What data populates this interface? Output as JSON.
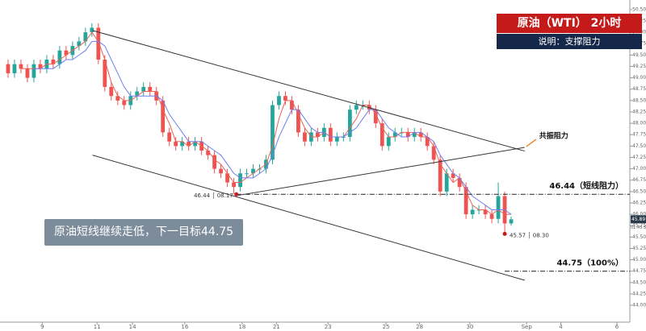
{
  "header": {
    "title": "原油（WTI） 2小时",
    "subtitle": "说明：支撑阻力"
  },
  "callout": "原油短线继续走低，下一目标44.75",
  "chart_data": {
    "type": "candlestick",
    "up_color": "#26a69a",
    "down_color": "#ef5350",
    "open": [
      49.3,
      49.1,
      49.3,
      49.2,
      49.0,
      49.3,
      49.2,
      49.4,
      49.3,
      49.6,
      49.5,
      49.7,
      49.8,
      50.0,
      50.1,
      49.4,
      48.8,
      48.6,
      48.5,
      48.4,
      48.6,
      48.7,
      48.8,
      48.7,
      48.5,
      47.8,
      47.6,
      47.5,
      47.6,
      47.5,
      47.6,
      47.4,
      47.3,
      47.0,
      46.9,
      46.7,
      46.6,
      46.9,
      46.9,
      47.0,
      47.0,
      47.2,
      48.4,
      48.6,
      48.5,
      48.3,
      47.8,
      47.6,
      47.8,
      47.7,
      47.9,
      47.6,
      47.7,
      47.7,
      48.3,
      48.4,
      48.4,
      48.3,
      48.0,
      47.5,
      47.7,
      47.8,
      47.8,
      47.7,
      47.8,
      47.7,
      47.5,
      47.2,
      46.5,
      46.9,
      46.8,
      46.6,
      46.0,
      46.1,
      46.1,
      46.0,
      45.9,
      46.4,
      45.8
    ],
    "high": [
      49.4,
      49.4,
      49.4,
      49.3,
      49.4,
      49.4,
      49.5,
      49.5,
      49.7,
      49.7,
      49.8,
      49.9,
      50.1,
      50.2,
      50.2,
      49.5,
      48.9,
      48.7,
      48.6,
      48.7,
      48.8,
      48.9,
      48.9,
      48.8,
      48.6,
      47.9,
      47.7,
      47.7,
      47.7,
      47.7,
      47.7,
      47.5,
      47.4,
      47.1,
      47.0,
      46.8,
      47.0,
      47.0,
      47.1,
      47.1,
      47.3,
      48.5,
      48.7,
      48.7,
      48.6,
      48.4,
      47.9,
      47.9,
      47.9,
      48.0,
      48.0,
      47.8,
      47.8,
      48.4,
      48.5,
      48.5,
      48.5,
      48.4,
      48.1,
      47.8,
      47.9,
      47.9,
      47.9,
      47.9,
      47.9,
      47.8,
      47.6,
      47.3,
      47.0,
      47.0,
      46.9,
      46.7,
      46.2,
      46.2,
      46.2,
      46.1,
      46.7,
      46.5,
      45.95
    ],
    "low": [
      49.0,
      49.0,
      49.1,
      48.9,
      48.9,
      49.1,
      49.1,
      49.2,
      49.2,
      49.4,
      49.4,
      49.6,
      49.7,
      49.9,
      49.3,
      48.7,
      48.5,
      48.4,
      48.3,
      48.3,
      48.5,
      48.6,
      48.6,
      48.4,
      47.7,
      47.5,
      47.4,
      47.4,
      47.4,
      47.4,
      47.3,
      47.2,
      46.9,
      46.8,
      46.6,
      46.44,
      46.5,
      46.8,
      46.8,
      46.9,
      46.9,
      47.1,
      48.3,
      48.4,
      48.2,
      47.7,
      47.5,
      47.5,
      47.6,
      47.6,
      47.5,
      47.5,
      47.6,
      47.6,
      48.2,
      48.3,
      48.2,
      47.9,
      47.4,
      47.4,
      47.6,
      47.7,
      47.6,
      47.6,
      47.6,
      47.4,
      47.1,
      46.4,
      46.4,
      46.7,
      46.5,
      45.9,
      45.9,
      46.0,
      45.9,
      45.8,
      45.8,
      45.57,
      45.75
    ],
    "close": [
      49.1,
      49.3,
      49.2,
      49.0,
      49.3,
      49.2,
      49.4,
      49.3,
      49.6,
      49.5,
      49.7,
      49.8,
      50.0,
      50.1,
      49.4,
      48.8,
      48.6,
      48.5,
      48.4,
      48.6,
      48.7,
      48.8,
      48.7,
      48.5,
      47.8,
      47.6,
      47.5,
      47.6,
      47.5,
      47.6,
      47.4,
      47.3,
      47.0,
      46.9,
      46.7,
      46.6,
      46.9,
      46.9,
      47.0,
      47.0,
      47.2,
      48.4,
      48.6,
      48.5,
      48.3,
      47.8,
      47.6,
      47.8,
      47.7,
      47.9,
      47.6,
      47.7,
      47.7,
      48.3,
      48.4,
      48.4,
      48.3,
      48.0,
      47.5,
      47.7,
      47.8,
      47.8,
      47.7,
      47.8,
      47.7,
      47.5,
      47.2,
      46.5,
      46.9,
      46.8,
      46.6,
      46.0,
      46.1,
      46.1,
      46.0,
      45.9,
      46.4,
      45.8,
      45.89
    ],
    "series": [
      {
        "color": "#e8625a",
        "values": [
          null,
          null,
          49.2,
          49.2,
          49.2,
          49.2,
          49.3,
          49.3,
          49.4,
          49.5,
          49.6,
          49.7,
          49.8,
          50.0,
          49.8,
          49.4,
          48.9,
          48.6,
          48.5,
          48.5,
          48.6,
          48.7,
          48.7,
          48.7,
          48.3,
          48.0,
          47.6,
          47.6,
          47.5,
          47.6,
          47.5,
          47.4,
          47.2,
          47.1,
          46.9,
          46.7,
          46.7,
          46.8,
          46.9,
          47.0,
          47.1,
          47.5,
          48.1,
          48.5,
          48.5,
          48.2,
          47.9,
          47.7,
          47.7,
          47.8,
          47.7,
          47.7,
          47.7,
          47.9,
          48.1,
          48.4,
          48.4,
          48.2,
          47.9,
          47.7,
          47.7,
          47.8,
          47.8,
          47.8,
          47.7,
          47.7,
          47.5,
          47.1,
          46.9,
          46.7,
          46.8,
          46.5,
          46.2,
          46.1,
          46.1,
          46.0,
          46.1,
          46.0,
          46.0
        ]
      },
      {
        "color": "#6f7ff0",
        "values": [
          null,
          null,
          null,
          null,
          49.2,
          49.2,
          49.2,
          49.2,
          49.3,
          49.4,
          49.4,
          49.5,
          49.6,
          49.8,
          49.8,
          49.7,
          49.4,
          49.1,
          48.8,
          48.6,
          48.6,
          48.6,
          48.6,
          48.6,
          48.5,
          48.2,
          48.0,
          47.8,
          47.6,
          47.6,
          47.6,
          47.5,
          47.4,
          47.3,
          47.1,
          46.9,
          46.8,
          46.8,
          46.8,
          46.9,
          47.0,
          47.3,
          47.7,
          48.0,
          48.3,
          48.3,
          48.1,
          47.9,
          47.8,
          47.8,
          47.7,
          47.7,
          47.7,
          47.8,
          47.9,
          48.1,
          48.3,
          48.3,
          48.1,
          47.9,
          47.8,
          47.7,
          47.7,
          47.8,
          47.8,
          47.7,
          47.6,
          47.3,
          47.1,
          46.9,
          46.8,
          46.6,
          46.4,
          46.3,
          46.2,
          46.1,
          46.1,
          46.1,
          46.0
        ]
      }
    ],
    "trendlines": [
      {
        "x": [
          13.1,
          80.1
        ],
        "values": [
          50.04,
          47.39
        ]
      },
      {
        "x": [
          13.1,
          80.1
        ],
        "values": [
          47.3,
          44.55
        ]
      },
      {
        "x": [
          35.4,
          80.1
        ],
        "values": [
          46.41,
          47.47
        ]
      }
    ],
    "levels": [
      {
        "x": 35.4,
        "value": 46.44,
        "label": "46.44（短线阻力）"
      },
      {
        "x": 77,
        "value": 44.75,
        "label": "44.75（100%）"
      }
    ],
    "markers": [
      {
        "x": 35.4,
        "value": 46.44,
        "label": "46.44 │ 08.17"
      },
      {
        "x": 77,
        "value": 45.57,
        "label": "45.57 │ 08.30"
      }
    ],
    "annotation": {
      "x": 80.1,
      "value": 47.47,
      "label": "共振阻力"
    },
    "last_price": 45.89,
    "countdown": "01:45:51",
    "xlim": [
      -1.25,
      96.4
    ],
    "ylim": [
      43.63,
      50.71
    ],
    "xticks": [
      {
        "value": 5.3,
        "label": "9"
      },
      {
        "value": 13.8,
        "label": "11"
      },
      {
        "value": 19.3,
        "label": "14"
      },
      {
        "value": 27.4,
        "label": "16"
      },
      {
        "value": 36.3,
        "label": "18"
      },
      {
        "value": 41.6,
        "label": "21"
      },
      {
        "value": 49.6,
        "label": "23"
      },
      {
        "value": 58.6,
        "label": "25"
      },
      {
        "value": 63.8,
        "label": "28"
      },
      {
        "value": 71.6,
        "label": "30"
      },
      {
        "value": 80.4,
        "label": "Sep"
      },
      {
        "value": 85.7,
        "label": "4"
      },
      {
        "value": 94.4,
        "label": "6"
      }
    ],
    "yticks": [
      {
        "value": 50.5,
        "label": "50.50"
      },
      {
        "value": 50.25,
        "label": "50.25"
      },
      {
        "value": 50,
        "label": "50.00"
      },
      {
        "value": 49.75,
        "label": "49.75"
      },
      {
        "value": 49.5,
        "label": "49.50"
      },
      {
        "value": 49.25,
        "label": "49.25"
      },
      {
        "value": 49,
        "label": "49.00"
      },
      {
        "value": 48.75,
        "label": "48.75"
      },
      {
        "value": 48.5,
        "label": "48.50"
      },
      {
        "value": 48.25,
        "label": "48.25"
      },
      {
        "value": 48,
        "label": "48.00"
      },
      {
        "value": 47.75,
        "label": "47.75"
      },
      {
        "value": 47.5,
        "label": "47.50"
      },
      {
        "value": 47.25,
        "label": "47.25"
      },
      {
        "value": 47,
        "label": "47.00"
      },
      {
        "value": 46.75,
        "label": "46.75"
      },
      {
        "value": 46.5,
        "label": "46.50"
      },
      {
        "value": 46.25,
        "label": "46.25"
      },
      {
        "value": 46,
        "label": "46.00"
      },
      {
        "value": 45.75,
        "label": "45.75"
      },
      {
        "value": 45.5,
        "label": "45.50"
      },
      {
        "value": 45.25,
        "label": "45.25"
      },
      {
        "value": 45,
        "label": "45.00"
      },
      {
        "value": 44.75,
        "label": "44.75"
      },
      {
        "value": 44.5,
        "label": "44.50"
      },
      {
        "value": 44.25,
        "label": "44.25"
      },
      {
        "value": 44,
        "label": "44.00"
      }
    ]
  }
}
